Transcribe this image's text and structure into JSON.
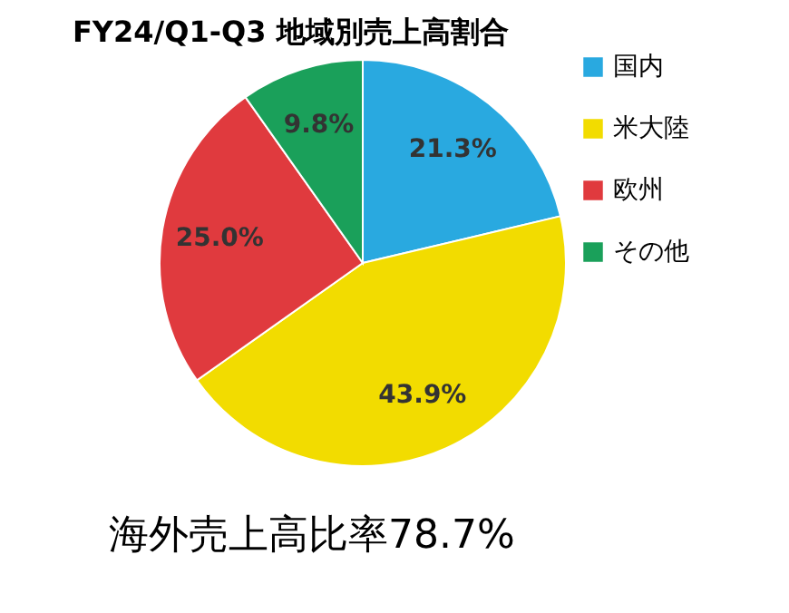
{
  "chart_data": {
    "type": "pie",
    "title": "FY24/Q1-Q3 地域別売上高割合",
    "categories": [
      "国内",
      "米大陸",
      "欧州",
      "その他"
    ],
    "values": [
      21.3,
      43.9,
      25.0,
      9.8
    ],
    "colors": [
      "#29a9e0",
      "#f2dc00",
      "#e03a3e",
      "#1aa05a"
    ],
    "value_labels": [
      "21.3%",
      "43.9%",
      "25.0%",
      "9.8%"
    ],
    "legend": "right",
    "annotations": [
      "海外売上高比率78.7%"
    ]
  }
}
